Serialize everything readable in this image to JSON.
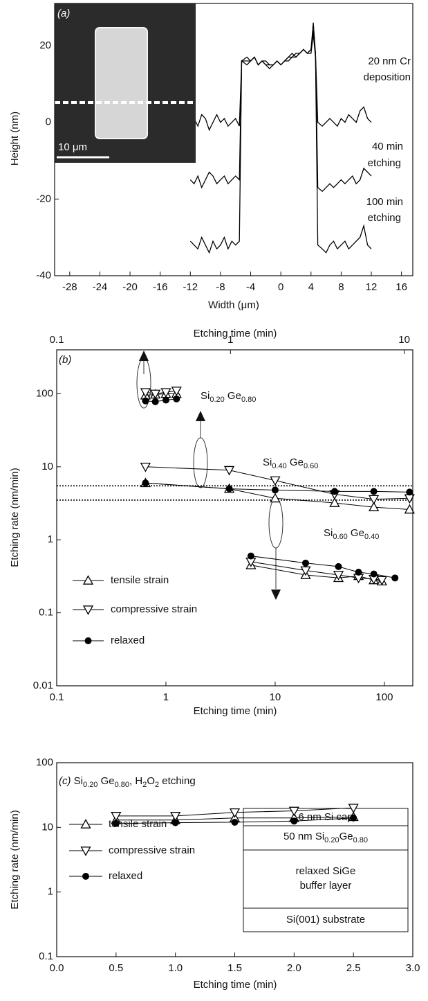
{
  "chart_data": [
    {
      "type": "line",
      "panel_label": "(a)",
      "x_label": "Width (μm)",
      "y_label": "Height (nm)",
      "xlim": [
        -30,
        17.5
      ],
      "ylim": [
        -40,
        31
      ],
      "xticks": [
        -28,
        -24,
        -20,
        -16,
        -12,
        -8,
        -4,
        0,
        4,
        8,
        12,
        16
      ],
      "yticks": [
        -40,
        -20,
        0,
        20
      ],
      "inset_scale_bar": "10 μm",
      "x": [
        -12,
        -11.5,
        -11,
        -10.5,
        -10,
        -9.5,
        -9,
        -8.5,
        -8,
        -7.5,
        -7,
        -6.5,
        -6,
        -5.5,
        -5.2,
        -4.5,
        -4,
        -3.5,
        -3,
        -2.5,
        -2,
        -1.5,
        -1,
        -0.5,
        0,
        0.5,
        1,
        1.5,
        2,
        2.5,
        3,
        3.5,
        4,
        4.3,
        4.6,
        4.9,
        5.5,
        6,
        6.5,
        7,
        7.5,
        8,
        8.5,
        9,
        9.5,
        10,
        10.5,
        11,
        11.5,
        12
      ],
      "series": [
        {
          "label": [
            "20 nm Cr",
            "deposition"
          ],
          "color": "#000000",
          "values": [
            0,
            1,
            -1,
            2,
            1,
            -2,
            0,
            2,
            0,
            1,
            -1,
            0,
            1,
            -1,
            16,
            17,
            16,
            17,
            15,
            16,
            15,
            14,
            15,
            16,
            15,
            16,
            17,
            18,
            17,
            18,
            19,
            18,
            19,
            26,
            18,
            0,
            -1,
            0,
            1,
            0,
            -1,
            1,
            0,
            2,
            1,
            0,
            3,
            4,
            1,
            0
          ]
        },
        {
          "label": [
            "40 min",
            "etching"
          ],
          "color": "#000000",
          "values": [
            -15,
            -16,
            -14,
            -17,
            -15,
            -13,
            -14,
            -16,
            -15,
            -14,
            -16,
            -15,
            -14,
            -15,
            16,
            16,
            16,
            17,
            15,
            16,
            15,
            15,
            15,
            16,
            15,
            16,
            17,
            17,
            17,
            18,
            19,
            18,
            19,
            24,
            18,
            -17,
            -18,
            -17,
            -16,
            -17,
            -16,
            -15,
            -16,
            -15,
            -14,
            -16,
            -15,
            -12,
            -13,
            -14
          ]
        },
        {
          "label": [
            "100 min",
            "etching"
          ],
          "color": "#000000",
          "values": [
            -31,
            -32,
            -33,
            -30,
            -32,
            -34,
            -31,
            -33,
            -32,
            -30,
            -33,
            -31,
            -32,
            -31,
            16,
            15,
            16,
            17,
            15,
            16,
            16,
            15,
            15,
            16,
            15,
            16,
            16,
            17,
            18,
            18,
            19,
            18,
            18,
            23,
            17,
            -32,
            -33,
            -34,
            -32,
            -31,
            -33,
            -32,
            -31,
            -33,
            -32,
            -31,
            -30,
            -27,
            -32,
            -33
          ]
        }
      ]
    },
    {
      "type": "scatter",
      "panel_label": "(b)",
      "x_label": "Etching time (min)",
      "y_label": "Etching rate (nm/min)",
      "x_scale": "log",
      "y_scale": "log",
      "xlim": [
        0.1,
        182
      ],
      "ylim": [
        0.01,
        400
      ],
      "xticks": [
        0.1,
        1,
        10,
        100
      ],
      "yticks": [
        0.01,
        0.1,
        1,
        10,
        100
      ],
      "x2_label": "Etching time (min)",
      "x2lim": [
        0.1,
        11.2
      ],
      "x2ticks": [
        0.1,
        1,
        10
      ],
      "reference_lines": [
        5.5,
        3.5
      ],
      "annotations": [
        [
          "Si",
          "0.20",
          " Ge",
          "0.80"
        ],
        [
          "Si",
          "0.40",
          " Ge",
          "0.60"
        ],
        [
          "Si",
          "0.60",
          " Ge",
          "0.40"
        ]
      ],
      "series": [
        {
          "name": "tensile strain",
          "marker": "triangle-up",
          "color": "#000000",
          "groups": [
            {
              "x": [
                0.65,
                0.8,
                1,
                1.25
              ],
              "values": [
                95,
                98,
                100,
                100
              ]
            },
            {
              "x": [
                0.65,
                3.8,
                10,
                35,
                80,
                170
              ],
              "values": [
                6,
                5,
                3.7,
                3.2,
                2.8,
                2.6
              ]
            },
            {
              "x": [
                6,
                19,
                38,
                58,
                80,
                95
              ],
              "values": [
                0.45,
                0.33,
                0.3,
                0.32,
                0.28,
                0.27
              ]
            }
          ]
        },
        {
          "name": "compressive strain",
          "marker": "triangle-down",
          "color": "#000000",
          "groups": [
            {
              "x": [
                0.65,
                0.8,
                1,
                1.25
              ],
              "values": [
                105,
                100,
                105,
                110
              ]
            },
            {
              "x": [
                0.65,
                3.8,
                10,
                35,
                80,
                170
              ],
              "values": [
                10,
                9,
                6.5,
                4.2,
                3.6,
                3.7
              ]
            },
            {
              "x": [
                6,
                19,
                38,
                58,
                80,
                95
              ],
              "values": [
                0.5,
                0.38,
                0.33,
                0.3,
                0.29,
                0.28
              ]
            }
          ]
        },
        {
          "name": "relaxed",
          "marker": "circle",
          "color": "#000000",
          "groups": [
            {
              "x": [
                0.65,
                0.8,
                1,
                1.25
              ],
              "values": [
                80,
                78,
                82,
                85
              ]
            },
            {
              "x": [
                0.65,
                3.8,
                10,
                35,
                80,
                170
              ],
              "values": [
                6,
                5,
                4.8,
                4.6,
                4.6,
                4.5
              ]
            },
            {
              "x": [
                6,
                19,
                38,
                58,
                80,
                125
              ],
              "values": [
                0.6,
                0.48,
                0.43,
                0.36,
                0.34,
                0.3
              ]
            }
          ]
        }
      ]
    },
    {
      "type": "scatter",
      "panel_label": "(c)",
      "title_parts": [
        "Si",
        "0.20",
        " Ge",
        "0.80",
        ", H",
        "2",
        "O",
        "2",
        " etching"
      ],
      "x_label": "Etching time (min)",
      "y_label": "Etching rate (nm/min)",
      "x_scale": "linear",
      "y_scale": "log",
      "xlim": [
        0,
        3
      ],
      "ylim": [
        0.1,
        100
      ],
      "xticks": [
        {
          "value": 0,
          "label": "0.0"
        },
        0.5,
        {
          "value": 1,
          "label": "1.0"
        },
        1.5,
        {
          "value": 2,
          "label": "2.0"
        },
        2.5,
        {
          "value": 3,
          "label": "3.0"
        }
      ],
      "yticks": [
        0.1,
        1,
        10,
        100
      ],
      "stack": {
        "cap": "6 nm Si cap",
        "film": [
          "50 nm Si",
          "0.20",
          "Ge",
          "0.80"
        ],
        "buffer": [
          "relaxed SiGe",
          "buffer layer"
        ],
        "substrate": "Si(001) substrate"
      },
      "x": [
        0.5,
        1,
        1.5,
        2,
        2.5
      ],
      "series": [
        {
          "name": "tensile strain",
          "marker": "triangle-up",
          "color": "#000000",
          "values": [
            13,
            13,
            14,
            14,
            14.5
          ]
        },
        {
          "name": "compressive strain",
          "marker": "triangle-down",
          "color": "#000000",
          "values": [
            15,
            15,
            17,
            18,
            20
          ]
        },
        {
          "name": "relaxed",
          "marker": "circle",
          "color": "#000000",
          "values": [
            11.5,
            11.8,
            12,
            12.5,
            14
          ]
        }
      ]
    }
  ]
}
